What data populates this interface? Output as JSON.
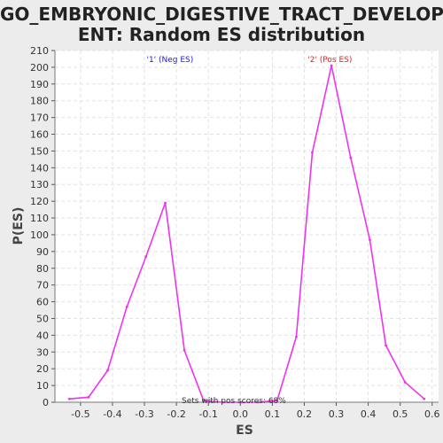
{
  "chart_data": {
    "type": "line",
    "title_line_1": "GO_EMBRYONIC_DIGESTIVE_TRACT_DEVELOPM",
    "title_line_2": "ENT: Random ES distribution",
    "xlabel": "ES",
    "ylabel": "P(ES)",
    "xlim": [
      -0.58,
      0.62
    ],
    "ylim": [
      0,
      210
    ],
    "x_ticks": [
      -0.5,
      -0.4,
      -0.3,
      -0.2,
      -0.1,
      0.0,
      0.1,
      0.2,
      0.3,
      0.4,
      0.5,
      0.6
    ],
    "x_tick_labels": [
      "-0.5",
      "-0.4",
      "-0.3",
      "-0.2",
      "-0.1",
      "0.0",
      "0.1",
      "0.2",
      "0.3",
      "0.4",
      "0.5",
      "0.6"
    ],
    "y_ticks": [
      0,
      10,
      20,
      30,
      40,
      50,
      60,
      70,
      80,
      90,
      100,
      110,
      120,
      130,
      140,
      150,
      160,
      170,
      180,
      190,
      200,
      210
    ],
    "grid": true,
    "series": [
      {
        "name": "P(ES)",
        "color": "#ee33ee",
        "x": [
          -0.535,
          -0.475,
          -0.415,
          -0.355,
          -0.295,
          -0.235,
          -0.175,
          -0.115,
          -0.055,
          0.005,
          0.055,
          0.115,
          0.175,
          0.225,
          0.285,
          0.345,
          0.405,
          0.455,
          0.515,
          0.575
        ],
        "values": [
          2,
          3,
          19,
          57,
          87,
          119,
          31,
          1,
          0,
          0,
          0,
          1,
          39,
          149,
          201,
          146,
          97,
          34,
          12,
          2
        ]
      }
    ],
    "legend": [
      {
        "label": "'1' (Neg ES)",
        "color": "#2222cc",
        "at_x": -0.22
      },
      {
        "label": "'2' (Pos ES)",
        "color": "#dd2222",
        "at_x": 0.28
      }
    ],
    "annotation": "Sets with pos scores: 68%"
  }
}
